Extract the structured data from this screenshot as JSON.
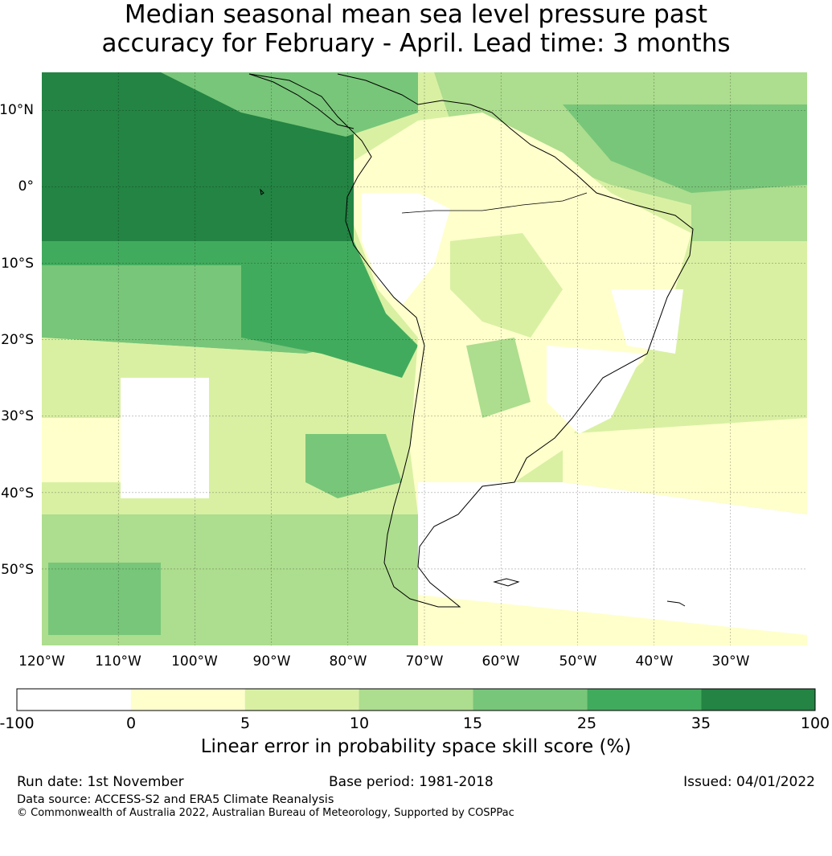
{
  "title": {
    "line1": "Median seasonal mean sea level pressure past",
    "line2": "accuracy for February - April. Lead time: 3 months"
  },
  "map": {
    "lat_labels": [
      "10°N",
      "0°",
      "10°S",
      "20°S",
      "30°S",
      "40°S",
      "50°S"
    ],
    "lon_labels": [
      "120°W",
      "110°W",
      "100°W",
      "90°W",
      "80°W",
      "70°W",
      "60°W",
      "50°W",
      "40°W",
      "30°W"
    ],
    "extent": {
      "lon_min": -120,
      "lon_max": -20,
      "lat_min": -60,
      "lat_max": 15
    }
  },
  "colorbar": {
    "tick_labels": [
      "-100",
      "0",
      "5",
      "10",
      "15",
      "25",
      "35",
      "100"
    ],
    "colors": [
      "#ffffff",
      "#ffffcc",
      "#d9f0a3",
      "#addd8e",
      "#78c679",
      "#41ab5d",
      "#238443"
    ],
    "label": "Linear error in probability space skill score (%)"
  },
  "footer": {
    "run_date": "Run date: 1st November",
    "base_period": "Base period: 1981-2018",
    "issued": "Issued: 04/01/2022",
    "data_source": "Data source: ACCESS-S2 and ERA5 Climate Reanalysis",
    "copyright": "© Commonwealth of Australia 2022, Australian Bureau of Meteorology, Supported by COSPPac"
  }
}
